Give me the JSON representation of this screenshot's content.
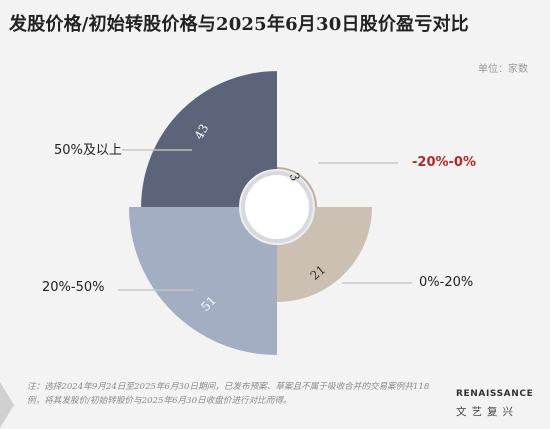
{
  "title": "发股价格/初始转股价格与2025年6月30日股价盈亏对比",
  "unit_label": "单位：家数",
  "chart_data": {
    "type": "pie",
    "subtype": "nightingale-rose-quarters",
    "title": "发股价格/初始转股价格与2025年6月30日股价盈亏对比",
    "categories": [
      "50%及以上",
      "-20%-0%",
      "0%-20%",
      "20%-50%"
    ],
    "values": [
      43,
      3,
      21,
      51
    ],
    "colors": [
      "#5b6479",
      "#b9ada1",
      "#ccc0b3",
      "#a3aec2"
    ],
    "legend_colors": [
      "#222222",
      "#b02a2a",
      "#222222",
      "#222222"
    ]
  },
  "footnote": "注：选择2024年9月24日至2025年6月30日期间，已发布预案、草案且不属于吸收合并的交易案例共118例，将其发股价/初始转股价与2025年6月30日收盘价进行对比而得。",
  "brand": {
    "name": "RENAISSANCE",
    "name_cn": "文艺复兴"
  }
}
